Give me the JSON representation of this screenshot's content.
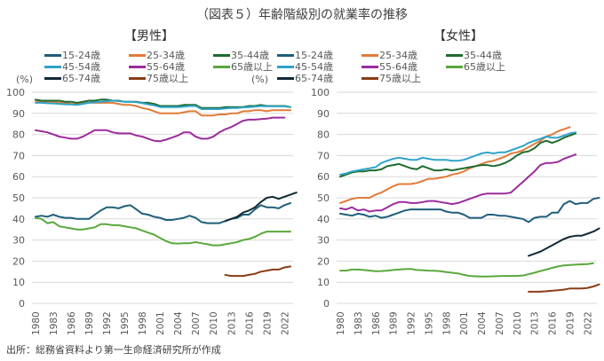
{
  "title": "（図表５）年齢階級別の就業率の推移",
  "source": "出所：総務省資料より第一生命経済研究所が作成",
  "unit_label": "(%)",
  "legend": [
    {
      "name": "15-24歳",
      "color": "#1f5f7a"
    },
    {
      "name": "25-34歳",
      "color": "#e07b39"
    },
    {
      "name": "35-44歳",
      "color": "#1e6b2e"
    },
    {
      "name": "45-54歳",
      "color": "#2ea3c9"
    },
    {
      "name": "55-64歳",
      "color": "#9c2c9c"
    },
    {
      "name": "65歳以上",
      "color": "#5aa83c"
    },
    {
      "name": "65-74歳",
      "color": "#0f2a36"
    },
    {
      "name": "75歳以上",
      "color": "#8a3d14"
    }
  ],
  "chart_data": [
    {
      "type": "line",
      "title": "【男性】",
      "xlabel": "",
      "ylabel": "(%)",
      "ylim": [
        0,
        100
      ],
      "yticks": [
        0,
        10,
        20,
        30,
        40,
        50,
        60,
        70,
        80,
        90,
        100
      ],
      "xticks": [
        "1980",
        "1983",
        "1986",
        "1989",
        "1992",
        "1995",
        "1998",
        "2001",
        "2004",
        "2007",
        "2010",
        "2013",
        "2016",
        "2019",
        "2022"
      ],
      "x_start": 1980,
      "x_end": 2023,
      "grid": true,
      "legend_position": "top",
      "series": [
        {
          "name": "15-24歳",
          "start": 1980,
          "values": [
            41,
            41.5,
            41,
            42,
            41,
            40.5,
            40.5,
            40,
            40,
            40,
            42,
            44,
            45.5,
            45.5,
            45,
            46,
            46.5,
            44.5,
            42.5,
            42,
            41,
            40.5,
            39.5,
            39.5,
            40,
            40.5,
            41.5,
            40.5,
            38.5,
            38,
            38,
            38,
            39,
            40,
            40.5,
            42,
            42,
            44.5,
            46.5,
            45.5,
            45.5,
            45,
            46.5,
            47.5
          ]
        },
        {
          "name": "25-34歳",
          "start": 1980,
          "values": [
            96,
            95.5,
            95.5,
            95.5,
            95,
            95,
            94.5,
            94.5,
            95,
            95,
            95,
            95,
            95,
            95,
            94.5,
            94,
            94,
            93.5,
            92.5,
            92,
            91,
            90,
            90,
            90,
            90,
            90.5,
            91,
            91,
            89,
            89,
            89,
            89.5,
            89.5,
            90,
            90,
            91,
            91,
            91.5,
            91.5,
            91,
            91.5,
            91.5,
            91.5,
            91.5
          ]
        },
        {
          "name": "35-44歳",
          "start": 1980,
          "values": [
            96.5,
            96,
            96,
            96,
            96,
            95.5,
            95.5,
            95,
            95.5,
            96,
            96,
            96.5,
            96.5,
            96,
            96,
            95.5,
            95.5,
            95.5,
            95,
            95,
            94.5,
            93.5,
            93.5,
            93.5,
            93.5,
            94,
            94,
            94,
            92.5,
            92.5,
            92.5,
            92.5,
            93,
            93,
            93,
            93,
            93.5,
            93.5,
            94,
            93.5,
            93.5,
            93.5,
            93.5,
            93
          ]
        },
        {
          "name": "45-54歳",
          "start": 1980,
          "values": [
            95,
            95,
            94.8,
            94.7,
            94.5,
            94.3,
            94.2,
            94,
            94.5,
            95,
            95.3,
            95.5,
            95.8,
            96,
            95.8,
            95.5,
            95.5,
            95.3,
            94.8,
            94.3,
            93.8,
            93,
            93,
            93,
            93,
            93.2,
            93.5,
            93.5,
            92,
            92,
            92,
            92,
            92.3,
            92.5,
            92.5,
            92.8,
            93,
            93.2,
            93.5,
            93.3,
            93.3,
            93.3,
            93.3,
            93
          ]
        },
        {
          "name": "55-64歳",
          "start": 1980,
          "values": [
            82,
            81.5,
            81,
            80,
            79,
            78.5,
            78,
            78,
            79,
            80.5,
            82,
            82,
            82,
            81,
            80.5,
            80.5,
            80.5,
            79.5,
            79,
            78,
            77,
            76.8,
            77.5,
            78.5,
            79.5,
            81,
            81,
            79,
            78,
            78,
            79,
            81,
            82.5,
            83.5,
            85,
            86.5,
            87,
            87,
            87.3,
            87.5,
            88,
            88,
            88
          ]
        },
        {
          "name": "65歳以上",
          "start": 1980,
          "values": [
            40.5,
            40,
            38,
            38.5,
            36.5,
            36,
            35.5,
            35,
            35,
            35.5,
            36,
            37.5,
            37.5,
            37,
            37,
            36.5,
            36,
            35.5,
            34.5,
            33.5,
            32.5,
            31,
            29.5,
            28.5,
            28.3,
            28.5,
            28.5,
            29,
            28.5,
            28,
            27.5,
            27.5,
            28,
            28.5,
            29,
            30,
            30.5,
            31.5,
            33,
            34,
            34,
            34,
            34,
            34
          ]
        },
        {
          "name": "65-74歳",
          "start": 2012,
          "values": [
            39,
            40,
            41,
            43,
            44,
            45.5,
            48,
            50,
            50.5,
            49.5,
            50.5,
            51.5,
            52.5
          ]
        },
        {
          "name": "75歳以上",
          "start": 2012,
          "values": [
            13.5,
            13,
            13,
            13,
            13.5,
            14,
            15,
            15.5,
            16,
            16,
            17,
            17.5
          ]
        }
      ]
    },
    {
      "type": "line",
      "title": "【女性】",
      "xlabel": "",
      "ylabel": "(%)",
      "ylim": [
        0,
        100
      ],
      "yticks": [
        0,
        10,
        20,
        30,
        40,
        50,
        60,
        70,
        80,
        90,
        100
      ],
      "xticks": [
        "1980",
        "1983",
        "1986",
        "1989",
        "1992",
        "1995",
        "1998",
        "2001",
        "2004",
        "2007",
        "2010",
        "2013",
        "2016",
        "2019",
        "2022"
      ],
      "x_start": 1980,
      "x_end": 2023,
      "grid": true,
      "legend_position": "top",
      "series": [
        {
          "name": "15-24歳",
          "start": 1980,
          "values": [
            42.5,
            42,
            41.5,
            42.5,
            42,
            41,
            41.5,
            40.5,
            41,
            42,
            43,
            44,
            44.5,
            44.5,
            44.5,
            44.5,
            44.5,
            44.5,
            43.5,
            43,
            43,
            42,
            40.5,
            40.5,
            40.5,
            42,
            42,
            41.5,
            41.5,
            41,
            40.5,
            40,
            38.5,
            40.5,
            41,
            41,
            43,
            43,
            47,
            48.5,
            47,
            47.5,
            47.5,
            49.5,
            50
          ]
        },
        {
          "name": "25-34歳",
          "start": 1980,
          "values": [
            47.5,
            48.5,
            49.5,
            50,
            50,
            50,
            51.5,
            52.5,
            54,
            55.5,
            56.5,
            56.5,
            56.5,
            57,
            58,
            59,
            59,
            59.5,
            60,
            61,
            61.5,
            62.5,
            64,
            65,
            66,
            67,
            67.5,
            68.5,
            69.5,
            71,
            71.5,
            72.5,
            74,
            75.5,
            77,
            79,
            80,
            81.5,
            82.5,
            83.5
          ]
        },
        {
          "name": "35-44歳",
          "start": 1980,
          "values": [
            60,
            61,
            62,
            62.5,
            62.5,
            63,
            63,
            63.5,
            65,
            65.5,
            66,
            65,
            64,
            63.5,
            65,
            64,
            63,
            63,
            63.5,
            63,
            63.5,
            64,
            64.5,
            65,
            65.5,
            65.5,
            65,
            65.5,
            66.5,
            68,
            70,
            71.5,
            72,
            73.5,
            76,
            77,
            76,
            77,
            78.5,
            79.5,
            80.5
          ]
        },
        {
          "name": "45-54歳",
          "start": 1980,
          "values": [
            61,
            61.5,
            62.5,
            63,
            63.5,
            64,
            64.5,
            66.5,
            67.5,
            68.5,
            69,
            68.5,
            68,
            68,
            69,
            68.5,
            68,
            68,
            68,
            67.5,
            67.5,
            68,
            69,
            70,
            71,
            71.5,
            71,
            71.5,
            71.5,
            72.5,
            73.5,
            74.5,
            76,
            77,
            78,
            79,
            78.5,
            78.5,
            79.5,
            80.5,
            81
          ]
        },
        {
          "name": "55-64歳",
          "start": 1980,
          "values": [
            45,
            44.5,
            45.5,
            44,
            44.5,
            43.5,
            44,
            44,
            45.5,
            47,
            48,
            48,
            47.5,
            47.5,
            48,
            48.5,
            48.5,
            48,
            47.5,
            47,
            47.5,
            48.5,
            49.5,
            50.5,
            51.5,
            52,
            52,
            52,
            52,
            52.5,
            55,
            57.5,
            60,
            62.5,
            65.5,
            66.5,
            66.5,
            67,
            68.5,
            69.5,
            70.5
          ]
        },
        {
          "name": "65歳以上",
          "start": 1980,
          "values": [
            15.5,
            15.5,
            16,
            16,
            15.8,
            15.5,
            15.2,
            15.3,
            15.5,
            15.8,
            16,
            16.2,
            16.3,
            15.8,
            15.7,
            15.5,
            15.4,
            15.2,
            14.8,
            14.5,
            14.2,
            13.5,
            13,
            12.8,
            12.7,
            12.7,
            12.8,
            12.9,
            13,
            13,
            13,
            13.2,
            13.8,
            14.5,
            15.3,
            16,
            16.8,
            17.5,
            18,
            18.2,
            18.3,
            18.5,
            18.6,
            19
          ]
        },
        {
          "name": "65-74歳",
          "start": 2012,
          "values": [
            22.5,
            23.5,
            24.5,
            26,
            27.5,
            29,
            30.5,
            31.5,
            32,
            32,
            33,
            34,
            35.5
          ]
        },
        {
          "name": "75歳以上",
          "start": 2012,
          "values": [
            5.5,
            5.5,
            5.5,
            5.7,
            6,
            6.2,
            6.5,
            7,
            7,
            7,
            7.3,
            8,
            9
          ]
        }
      ]
    }
  ]
}
